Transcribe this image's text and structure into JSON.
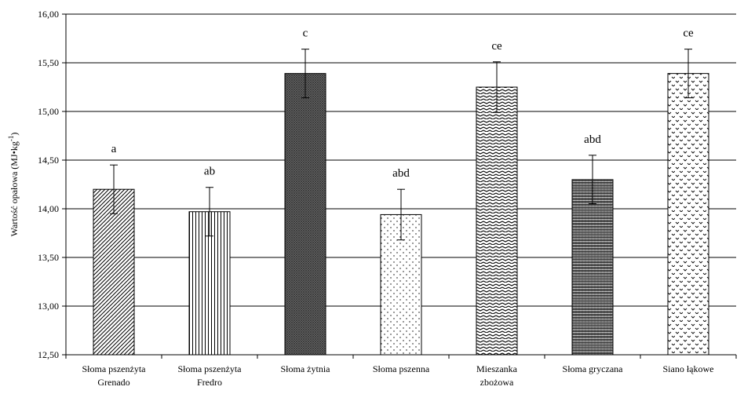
{
  "chart_data": {
    "type": "bar",
    "title": "",
    "xlabel": "",
    "ylabel": {
      "prefix": "Wartość opałowa (MJ•kg",
      "sup": "-1",
      "suffix": ")"
    },
    "ylim": [
      12.5,
      16.0
    ],
    "y_ticks": [
      12.5,
      13.0,
      13.5,
      14.0,
      14.5,
      15.0,
      15.5,
      16.0
    ],
    "y_tick_labels": [
      "12,50",
      "13,00",
      "13,50",
      "14,00",
      "14,50",
      "15,00",
      "15,50",
      "16,00"
    ],
    "grid": true,
    "categories": [
      [
        "Słoma pszenżyta",
        "Grenado"
      ],
      [
        "Słoma pszenżyta",
        "Fredro"
      ],
      [
        "Słoma żytnia"
      ],
      [
        "Słoma pszenna"
      ],
      [
        "Mieszanka",
        "zbożowa"
      ],
      [
        "Słoma gryczana"
      ],
      [
        "Siano łąkowe"
      ]
    ],
    "values": [
      14.2,
      13.97,
      15.39,
      13.94,
      15.25,
      14.3,
      15.39
    ],
    "error": [
      0.25,
      0.25,
      0.25,
      0.26,
      0.26,
      0.25,
      0.25
    ],
    "significance_labels": [
      "a",
      "ab",
      "c",
      "abd",
      "ce",
      "abd",
      "ce"
    ],
    "patterns": [
      "diagonal-hatch",
      "vertical-lines",
      "dense-crosshatch",
      "sparse-dots",
      "wave-lines",
      "zigzag",
      "chevron-dots"
    ]
  }
}
